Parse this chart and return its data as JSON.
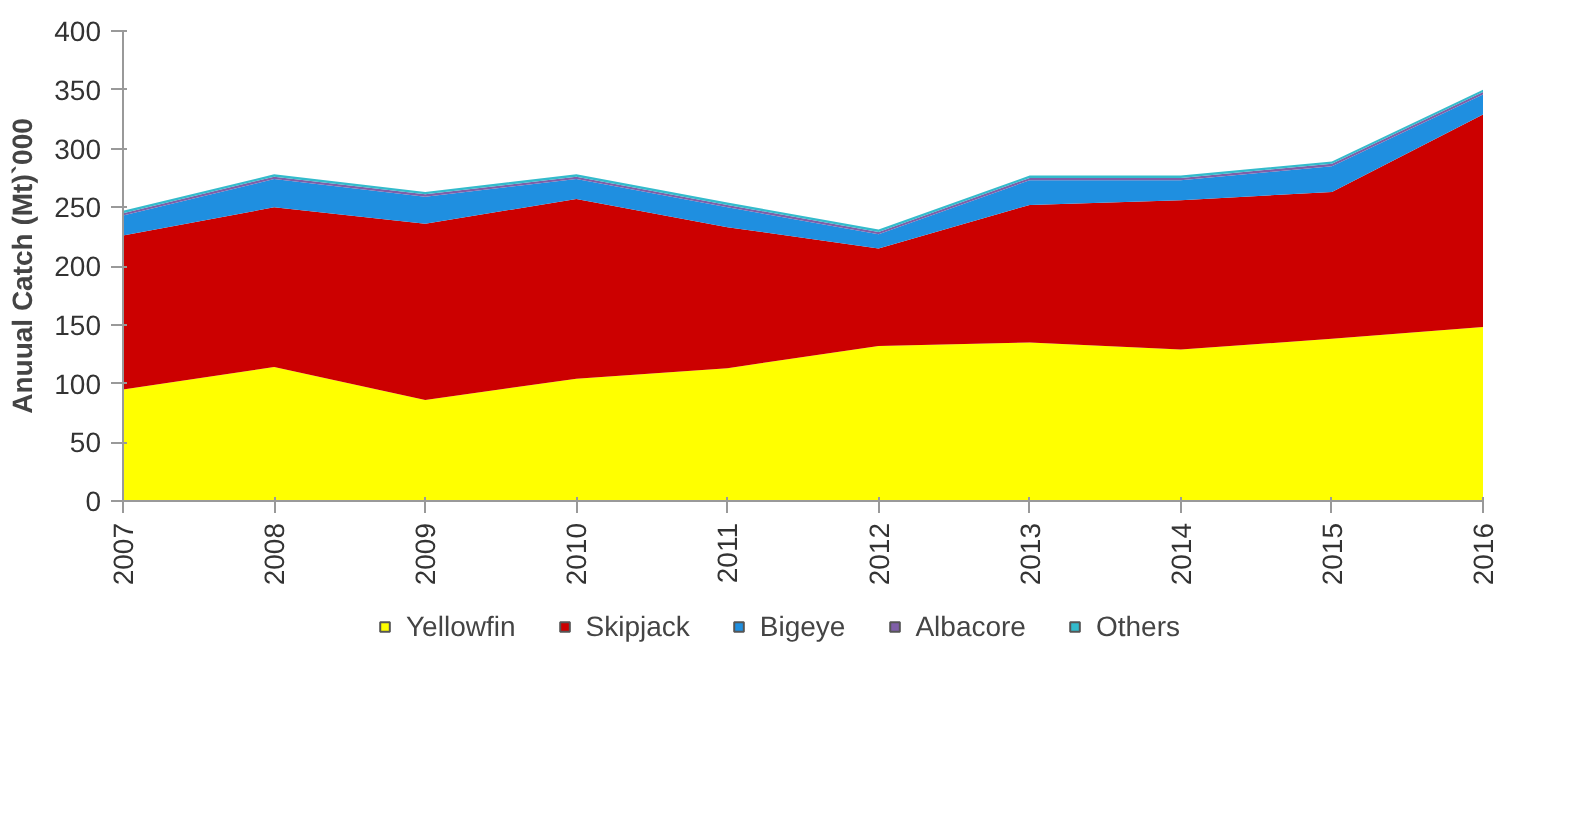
{
  "chart_data": {
    "type": "area",
    "stacked": true,
    "ylabel": "Anuual Catch (Mt)`000",
    "categories": [
      "2007",
      "2008",
      "2009",
      "2010",
      "2011",
      "2012",
      "2013",
      "2014",
      "2015",
      "2016"
    ],
    "series": [
      {
        "name": "Yellowfin",
        "color": "#ffff00",
        "values": [
          95,
          114,
          86,
          104,
          113,
          132,
          135,
          129,
          138,
          148
        ]
      },
      {
        "name": "Skipjack",
        "color": "#cc0000",
        "values": [
          131,
          136,
          150,
          153,
          120,
          83,
          117,
          127,
          125,
          181
        ]
      },
      {
        "name": "Bigeye",
        "color": "#1f8fe0",
        "values": [
          17,
          24,
          23,
          17,
          17,
          12,
          21,
          17,
          22,
          17
        ]
      },
      {
        "name": "Albacore",
        "color": "#7f5fa8",
        "values": [
          2,
          2,
          2,
          2,
          2,
          2,
          2,
          2,
          2,
          2
        ]
      },
      {
        "name": "Others",
        "color": "#33bbcc",
        "values": [
          2,
          2,
          2,
          2,
          2,
          2,
          2,
          2,
          2,
          2
        ]
      }
    ],
    "ylim": [
      0,
      400
    ],
    "yticks": [
      0,
      50,
      100,
      150,
      200,
      250,
      300,
      350,
      400
    ],
    "grid": false,
    "legend": "bottom"
  }
}
